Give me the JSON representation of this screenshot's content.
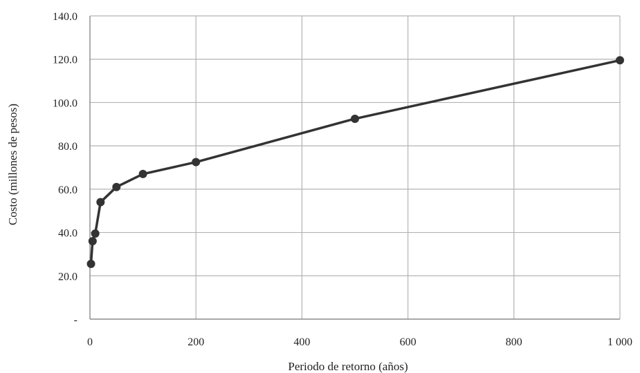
{
  "chart_data": {
    "type": "line",
    "title": "",
    "xlabel": "Periodo de retorno (años)",
    "ylabel": "Costo (millones de pesos)",
    "xlim": [
      0,
      1000
    ],
    "ylim": [
      0,
      140
    ],
    "x_ticks": [
      0,
      200,
      400,
      600,
      800,
      1000
    ],
    "x_tick_labels": [
      "0",
      "200",
      "400",
      "600",
      "800",
      "1 000"
    ],
    "y_ticks": [
      0,
      20,
      40,
      60,
      80,
      100,
      120,
      140
    ],
    "y_tick_labels": [
      "-",
      "20.0",
      "40.0",
      "60.0",
      "80.0",
      "100.0",
      "120.0",
      "140.0"
    ],
    "grid": true,
    "legend": "none",
    "series": [
      {
        "color": "#333333",
        "x": [
          2,
          5,
          10,
          20,
          50,
          100,
          200,
          500,
          1000
        ],
        "y": [
          25.5,
          36,
          39.5,
          54,
          61,
          67,
          72.5,
          92.5,
          119.5
        ]
      }
    ]
  }
}
